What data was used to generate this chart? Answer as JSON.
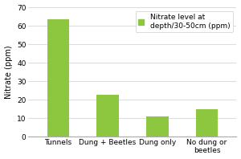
{
  "categories": [
    "Tunnels",
    "Dung + Beetles",
    "Dung only",
    "No dung or\nbeetles"
  ],
  "values": [
    63.5,
    22.5,
    11.0,
    15.0
  ],
  "bar_color": "#8DC63F",
  "ylabel": "Nitrate (ppm)",
  "ylim": [
    0,
    70
  ],
  "yticks": [
    0,
    10,
    20,
    30,
    40,
    50,
    60,
    70
  ],
  "legend_label": "Nitrate level at\ndepth/30-50cm (ppm)",
  "background_color": "#ffffff",
  "plot_bg_color": "#ffffff",
  "grid_color": "#dddddd",
  "spine_color": "#aaaaaa",
  "ylabel_fontsize": 7,
  "tick_fontsize": 6.5,
  "legend_fontsize": 6.5,
  "bar_width": 0.45
}
